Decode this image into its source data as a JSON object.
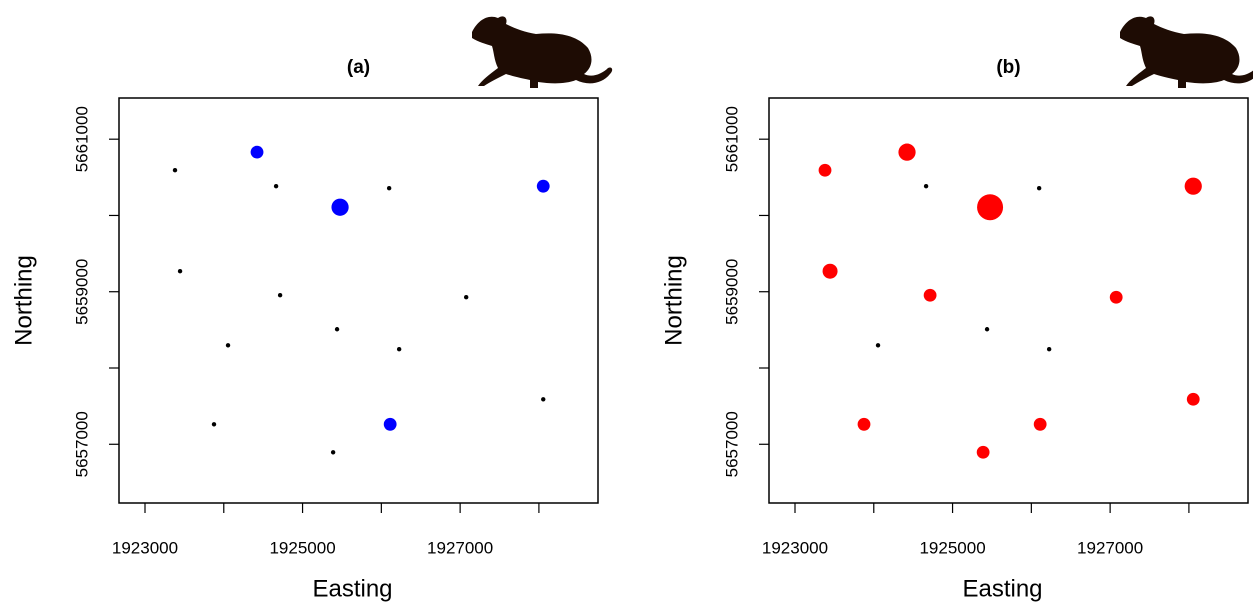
{
  "chart_data": [
    {
      "type": "scatter",
      "title": "(a)",
      "xlabel": "Easting",
      "ylabel": "Northing",
      "color": "#0000ff",
      "small_color": "#000000",
      "x": [
        1923381,
        1924422,
        1924664,
        1925476,
        1926099,
        1928055,
        1923445,
        1924715,
        1927077,
        1925438,
        1924054,
        1926226,
        1928055,
        1923876,
        1926112,
        1925388
      ],
      "y": [
        5660593,
        5660830,
        5660384,
        5660108,
        5660357,
        5660384,
        5659269,
        5658954,
        5658928,
        5658508,
        5658298,
        5658246,
        5657590,
        5657262,
        5657262,
        5656895
      ],
      "sizes": [
        0,
        2,
        0,
        3,
        0,
        2,
        0,
        0,
        0,
        0,
        0,
        0,
        0,
        0,
        2,
        0
      ],
      "xlim": [
        1922670,
        1928750
      ],
      "ylim": [
        5656230,
        5661540
      ],
      "xticks": [
        1923000,
        {
          "value": 1924000,
          "label": null
        },
        1925000,
        {
          "value": 1926000,
          "label": null
        },
        1927000,
        {
          "value": 1928000,
          "label": null
        }
      ],
      "yticks": [
        {
          "value": 5657000,
          "label": "5657000"
        },
        {
          "value": 5658000,
          "label": null
        },
        5659000,
        {
          "value": 5660000,
          "label": null
        },
        5661000
      ],
      "grid": false
    },
    {
      "type": "scatter",
      "title": "(b)",
      "xlabel": "Easting",
      "ylabel": "Northing",
      "color": "#ff0000",
      "small_color": "#000000",
      "x": [
        1923381,
        1924422,
        1924664,
        1925476,
        1926099,
        1928055,
        1923445,
        1924715,
        1927077,
        1925438,
        1924054,
        1926226,
        1928055,
        1923876,
        1926112,
        1925388
      ],
      "y": [
        5660593,
        5660830,
        5660384,
        5660108,
        5660357,
        5660384,
        5659269,
        5658954,
        5658928,
        5658508,
        5658298,
        5658246,
        5657590,
        5657262,
        5657262,
        5656895
      ],
      "sizes": [
        2,
        3,
        0,
        5,
        0,
        3,
        2.5,
        2,
        2,
        0,
        0,
        0,
        2,
        2,
        2,
        2
      ],
      "xlim": [
        1922670,
        1928750
      ],
      "ylim": [
        5656230,
        5661540
      ],
      "xticks": [
        1923000,
        {
          "value": 1924000,
          "label": null
        },
        1925000,
        {
          "value": 1926000,
          "label": null
        },
        1927000,
        {
          "value": 1928000,
          "label": null
        }
      ],
      "yticks": [
        5657000,
        {
          "value": 5658000,
          "label": null
        },
        5659000,
        {
          "value": 5660000,
          "label": null
        },
        5661000
      ],
      "grid": false
    }
  ]
}
